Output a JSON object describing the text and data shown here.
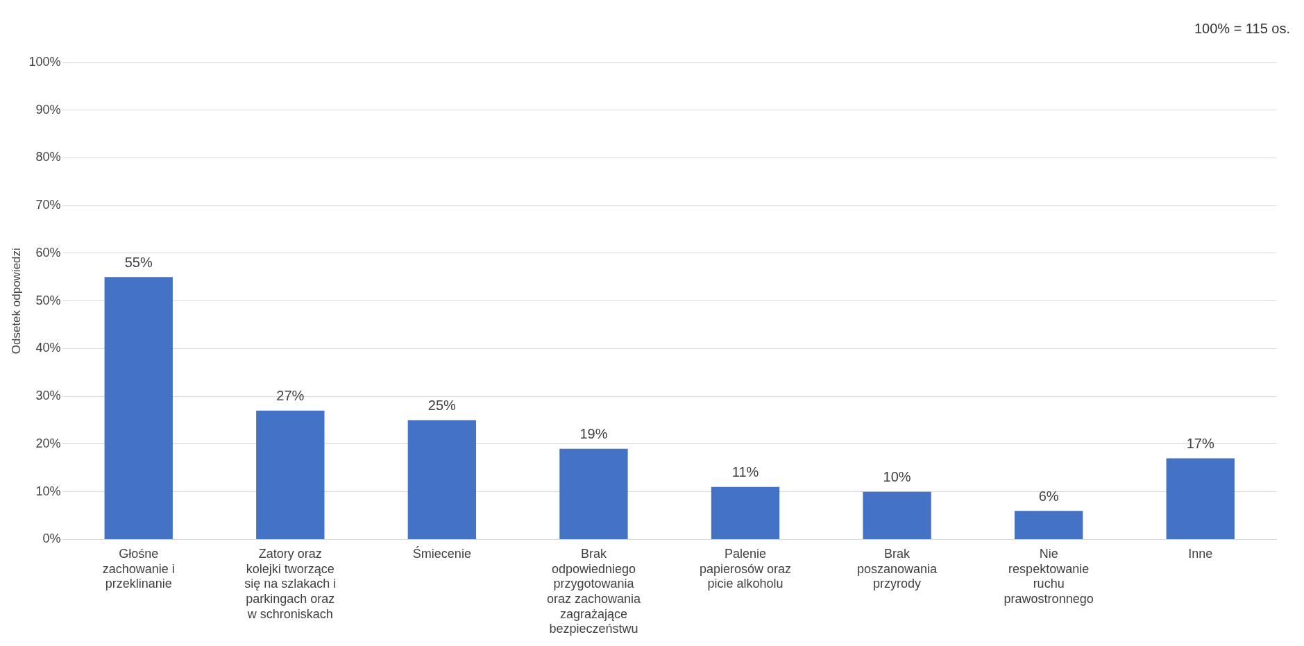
{
  "chart_data": {
    "type": "bar",
    "categories": [
      "Głośne\nzachowanie i\nprzeklinanie",
      "Zatory oraz\nkolejki tworzące\nsię na szlakach i\nparkingach oraz\nw schroniskach",
      "Śmiecenie",
      "Brak\nodpowiedniego\nprzygotowania\noraz zachowania\nzagrażające\nbezpieczeństwu",
      "Palenie\npapierosów oraz\npicie alkoholu",
      "Brak\nposzanowania\nprzyrody",
      "Nie\nrespektowanie\nruchu\nprawostronnego",
      "Inne"
    ],
    "values": [
      55,
      27,
      25,
      19,
      11,
      10,
      6,
      17
    ],
    "color": "#4472c4",
    "ylabel": "Odsetek odpowiedzi",
    "ylim": [
      0,
      100
    ],
    "yticks": [
      {
        "value": 0,
        "label": "0%"
      },
      {
        "value": 10,
        "label": "10%"
      },
      {
        "value": 20,
        "label": "20%"
      },
      {
        "value": 30,
        "label": "30%"
      },
      {
        "value": 40,
        "label": "40%"
      },
      {
        "value": 50,
        "label": "50%"
      },
      {
        "value": 60,
        "label": "60%"
      },
      {
        "value": 70,
        "label": "70%"
      },
      {
        "value": 80,
        "label": "80%"
      },
      {
        "value": 90,
        "label": "90%"
      },
      {
        "value": 100,
        "label": "100%"
      }
    ],
    "value_labels": [
      "55%",
      "27%",
      "25%",
      "19%",
      "11%",
      "10%",
      "6%",
      "17%"
    ],
    "annotations": [
      "100% = 115 os."
    ],
    "grid": "y",
    "legend": false
  }
}
